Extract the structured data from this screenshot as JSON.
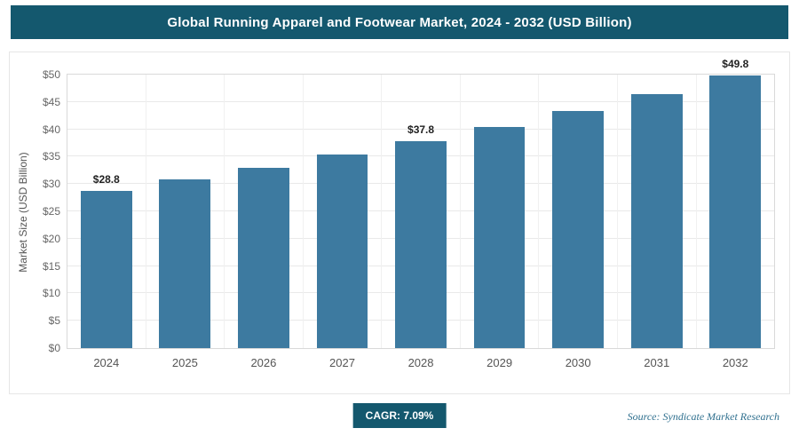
{
  "header": {
    "title": "Global Running Apparel and Footwear Market, 2024 - 2032 (USD Billion)"
  },
  "chart_data": {
    "type": "bar",
    "title": "Global Running Apparel and Footwear Market, 2024 - 2032 (USD Billion)",
    "categories": [
      "2024",
      "2025",
      "2026",
      "2027",
      "2028",
      "2029",
      "2030",
      "2031",
      "2032"
    ],
    "values": [
      28.8,
      30.8,
      33.0,
      35.4,
      37.8,
      40.5,
      43.3,
      46.4,
      49.8
    ],
    "data_labels": [
      "$28.8",
      null,
      null,
      null,
      "$37.8",
      null,
      null,
      null,
      "$49.8"
    ],
    "xlabel": "",
    "ylabel": "Market Size (USD Billion)",
    "ylim": [
      0,
      50
    ],
    "ytick_values": [
      0,
      5,
      10,
      15,
      20,
      25,
      30,
      35,
      40,
      45,
      50
    ],
    "ytick_labels": [
      "$0",
      "$5",
      "$10",
      "$15",
      "$20",
      "$25",
      "$30",
      "$35",
      "$40",
      "$45",
      "$50"
    ],
    "grid": true,
    "legend": false
  },
  "footer": {
    "cagr": "CAGR: 7.09%",
    "source": "Source: Syndicate Market Research"
  },
  "colors": {
    "header_bg": "#14586e",
    "badge_bg": "#14586e",
    "bar": "#3d7aa0",
    "grid": "#e9e9e9",
    "axis_border": "#d9d9d9"
  }
}
